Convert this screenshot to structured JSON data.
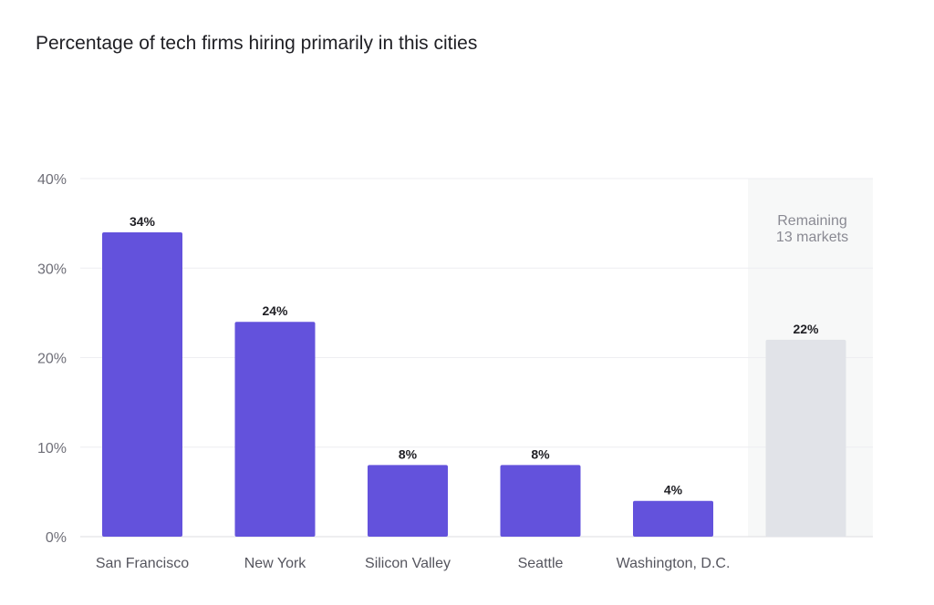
{
  "chart_data": {
    "type": "bar",
    "title": "Percentage of tech firms hiring primarily in this cities",
    "xlabel": "",
    "ylabel": "",
    "ylim": [
      0,
      40
    ],
    "yticks": [
      0,
      10,
      20,
      30,
      40
    ],
    "ytick_labels": [
      "0%",
      "10%",
      "20%",
      "30%",
      "40%"
    ],
    "grid": true,
    "categories": [
      "San Francisco",
      "New York",
      "Silicon Valley",
      "Seattle",
      "Washington, D.C.",
      ""
    ],
    "values": [
      34,
      24,
      8,
      8,
      4,
      22
    ],
    "value_labels": [
      "34%",
      "24%",
      "8%",
      "8%",
      "4%",
      "22%"
    ],
    "bar_colors": [
      "#6352dc",
      "#6352dc",
      "#6352dc",
      "#6352dc",
      "#6352dc",
      "#e1e3e8"
    ],
    "highlight_region": {
      "label_lines": [
        "Remaining",
        "13 markets"
      ],
      "background_color": "#f7f8f8"
    }
  }
}
